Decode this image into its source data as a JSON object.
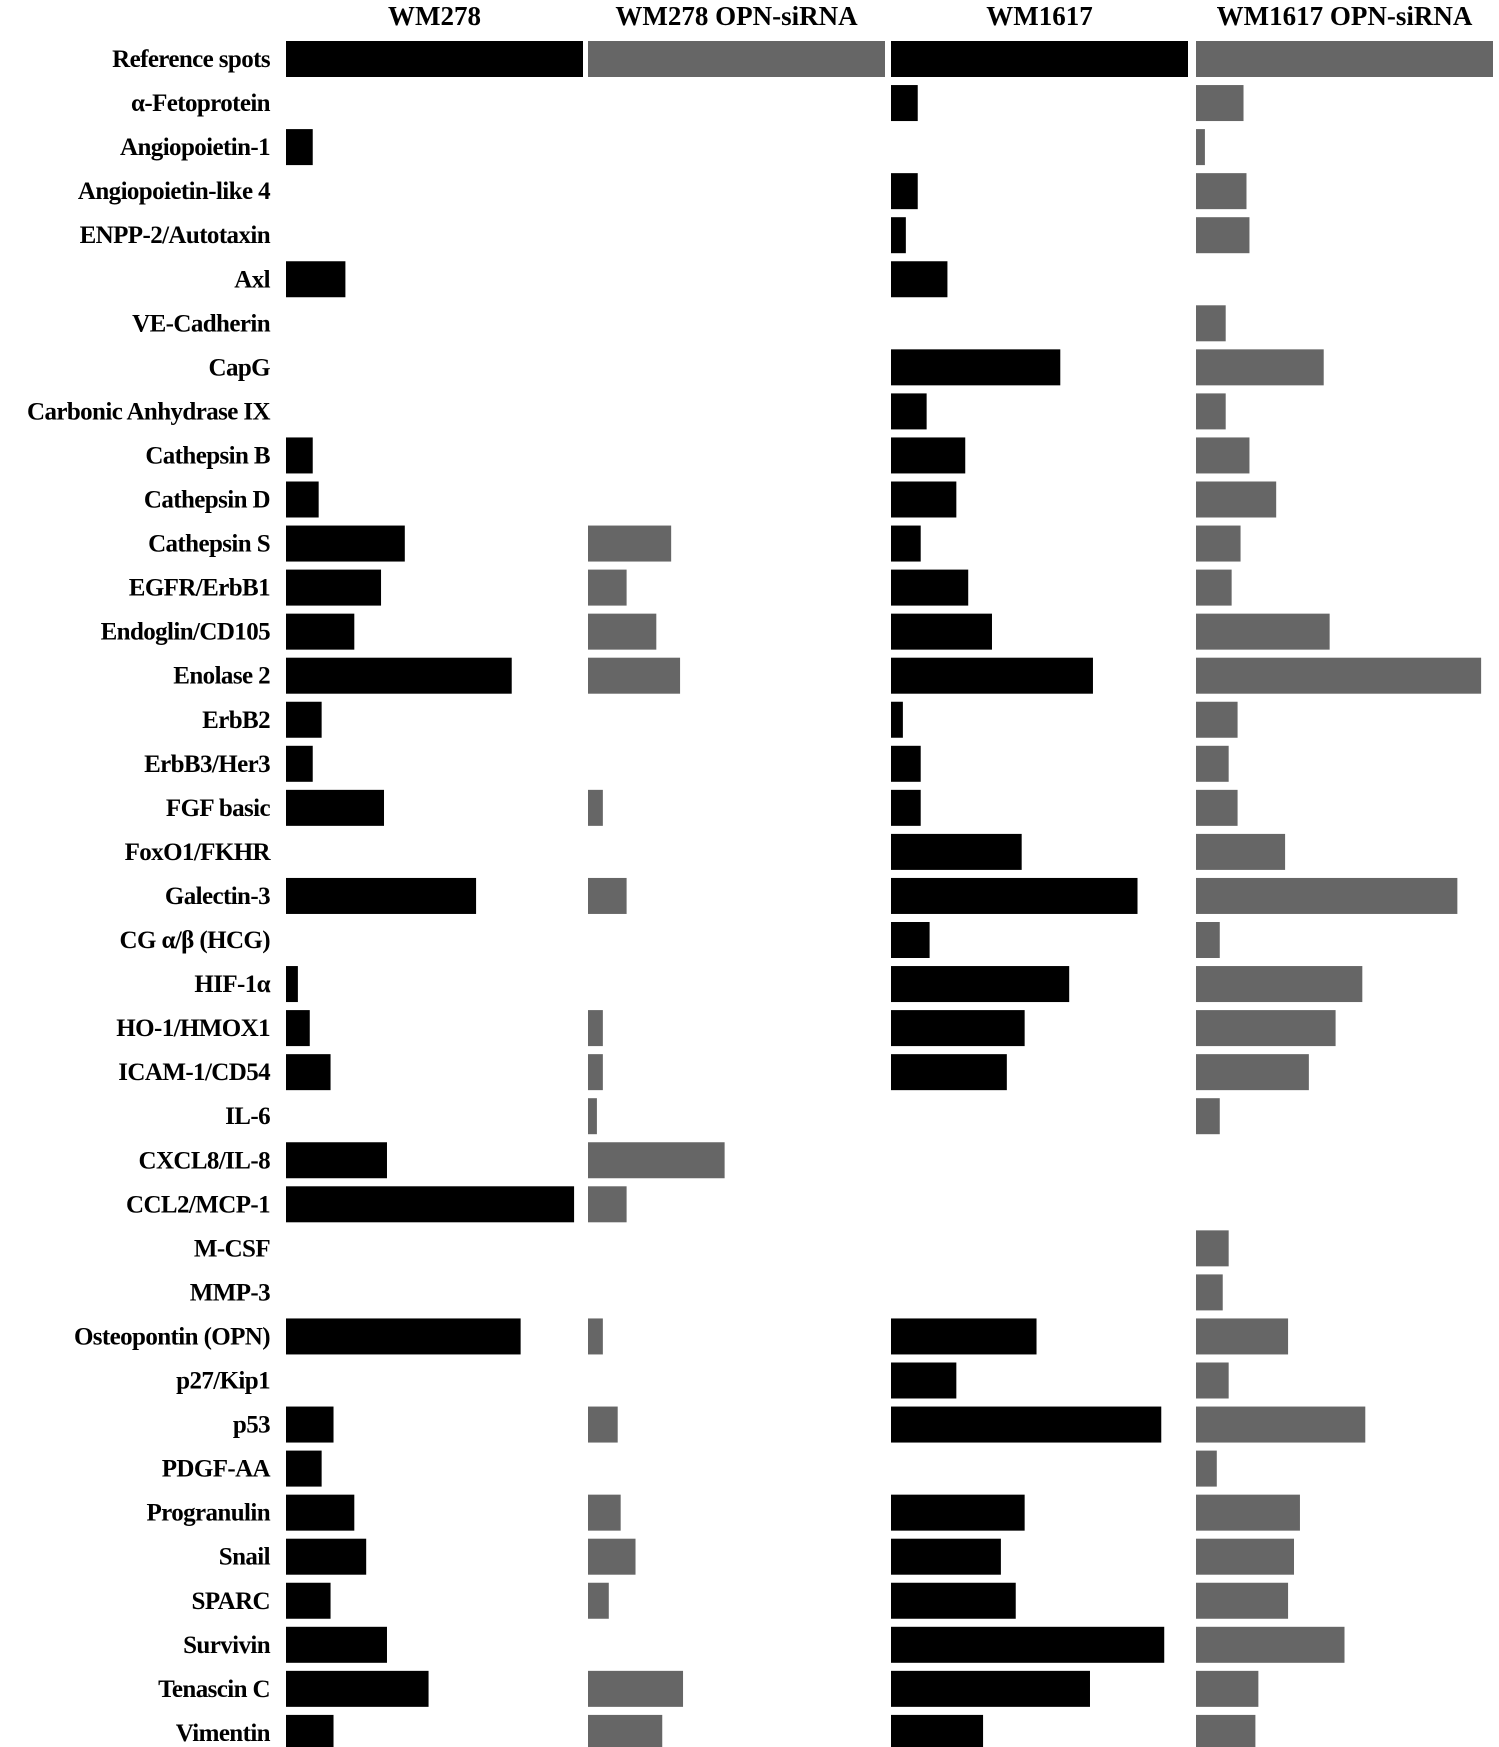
{
  "chart_data": {
    "type": "bar",
    "orientation": "horizontal",
    "title": "",
    "xlabel": "",
    "ylabel": "",
    "xlim": [
      0,
      100
    ],
    "legend": "none",
    "grid": false,
    "colors": {
      "WM278": "#000000",
      "WM278 OPN-siRNA": "#666666",
      "WM1617": "#000000",
      "WM1617 OPN-siRNA": "#666666"
    },
    "categories": [
      "Reference spots",
      "α-Fetoprotein",
      "Angiopoietin-1",
      "Angiopoietin-like 4",
      "ENPP-2/Autotaxin",
      "Axl",
      "VE-Cadherin",
      "CapG",
      "Carbonic Anhydrase IX",
      "Cathepsin B",
      "Cathepsin D",
      "Cathepsin S",
      "EGFR/ErbB1",
      "Endoglin/CD105",
      "Enolase 2",
      "ErbB2",
      "ErbB3/Her3",
      "FGF basic",
      "FoxO1/FKHR",
      "Galectin-3",
      "CG α/β (HCG)",
      "HIF-1α",
      "HO-1/HMOX1",
      "ICAM-1/CD54",
      "IL-6",
      "CXCL8/IL-8",
      "CCL2/MCP-1",
      "M-CSF",
      "MMP-3",
      "Osteopontin (OPN)",
      "p27/Kip1",
      "p53",
      "PDGF-AA",
      "Progranulin",
      "Snail",
      "SPARC",
      "Survivin",
      "Tenascin C",
      "Vimentin"
    ],
    "series": [
      {
        "name": "WM278",
        "values": [
          100,
          0,
          9,
          0,
          0,
          20,
          0,
          0,
          0,
          9,
          11,
          40,
          32,
          23,
          76,
          12,
          9,
          33,
          0,
          64,
          0,
          4,
          8,
          15,
          0,
          34,
          97,
          0,
          0,
          79,
          0,
          16,
          12,
          23,
          27,
          15,
          34,
          48,
          16
        ]
      },
      {
        "name": "WM278 OPN-siRNA",
        "values": [
          100,
          0,
          0,
          0,
          0,
          0,
          0,
          0,
          0,
          0,
          0,
          28,
          13,
          23,
          31,
          0,
          0,
          5,
          0,
          13,
          0,
          0,
          5,
          5,
          3,
          46,
          13,
          0,
          0,
          5,
          0,
          10,
          0,
          11,
          16,
          7,
          0,
          32,
          25
        ]
      },
      {
        "name": "WM1617",
        "values": [
          100,
          9,
          0,
          9,
          5,
          19,
          0,
          57,
          12,
          25,
          22,
          10,
          26,
          34,
          68,
          4,
          10,
          10,
          44,
          83,
          13,
          60,
          45,
          39,
          0,
          0,
          0,
          0,
          0,
          49,
          22,
          91,
          0,
          45,
          37,
          42,
          92,
          67,
          31
        ]
      },
      {
        "name": "WM1617 OPN-siRNA",
        "values": [
          100,
          16,
          3,
          17,
          18,
          0,
          10,
          43,
          10,
          18,
          27,
          15,
          12,
          45,
          96,
          14,
          11,
          14,
          30,
          88,
          8,
          56,
          47,
          38,
          8,
          0,
          0,
          11,
          9,
          31,
          11,
          57,
          7,
          35,
          33,
          31,
          50,
          21,
          20
        ]
      }
    ]
  }
}
